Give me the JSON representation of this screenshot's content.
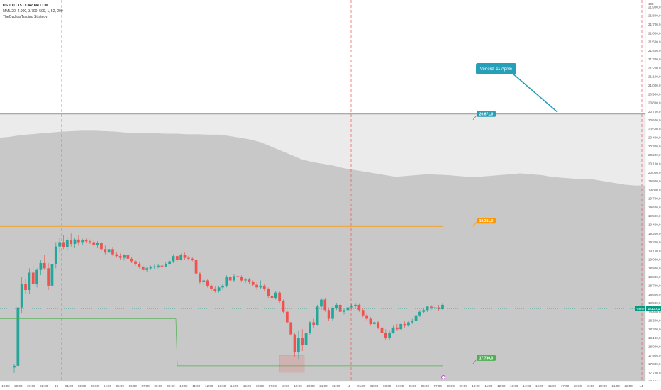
{
  "header": {
    "symbol_line": "US 100 · 15 · CAPITALCOM",
    "indicator_line": "MML 20, 4.900, 3.700, 500, 1, 52, 200",
    "strategy_line": "TheCyclicalTrading Strategy"
  },
  "colors": {
    "up": "#26a69a",
    "down": "#ef5350",
    "upper_band": "#ebebeb",
    "lower_band": "#c8c8c8",
    "resistance": "#ff9800",
    "support": "#4caf50",
    "target": "#26a0b8",
    "session_line": "#ef5350",
    "last_price": "#089981"
  },
  "chart_data": {
    "type": "candlestick",
    "title": "US 100 · 15 · CAPITALCOM",
    "y_axis": {
      "ticks": [
        "21.900,0",
        "21.800,0",
        "21.700,0",
        "21.600,0",
        "21.500,0",
        "21.400,0",
        "21.300,0",
        "21.200,0",
        "21.100,0",
        "21.000,0",
        "20.900,0",
        "20.800,0",
        "20.700,0",
        "20.600,0",
        "20.500,0",
        "20.400,0",
        "20.300,0",
        "20.200,0",
        "20.100,0",
        "20.000,0",
        "19.900,0",
        "19.800,0",
        "19.700,0",
        "19.600,0",
        "19.500,0",
        "19.400,0",
        "19.300,0",
        "19.200,0",
        "19.100,0",
        "19.000,0",
        "18.900,0",
        "18.800,0",
        "18.700,0",
        "18.600,0",
        "18.500,0",
        "18.400,0",
        "18.300,0",
        "18.200,0",
        "18.100,0",
        "18.000,0",
        "17.900,0",
        "17.800,0",
        "17.700,0",
        "17.600,0"
      ],
      "range": [
        17600,
        21980
      ],
      "top_label": "100"
    },
    "x_axis": {
      "ticks": [
        "19:00",
        "20:00",
        "21:00",
        "22:00",
        "10",
        "01:00",
        "02:00",
        "03:00",
        "04:00",
        "05:00",
        "06:00",
        "07:00",
        "08:00",
        "09:00",
        "10:00",
        "11:00",
        "12:00",
        "13:00",
        "14:00",
        "15:00",
        "16:00",
        "17:00",
        "18:00",
        "19:00",
        "20:00",
        "21:00",
        "22:00",
        "11",
        "01:00",
        "02:00",
        "03:00",
        "04:00",
        "05:00",
        "06:00",
        "07:00",
        "08:00",
        "09:00",
        "10:00",
        "11:00",
        "12:00",
        "13:00",
        "14:00",
        "15:00",
        "16:00",
        "17:00",
        "18:00",
        "19:00",
        "20:00",
        "21:00",
        "22:00",
        "14"
      ]
    },
    "candles": [
      {
        "o": 17760,
        "h": 17800,
        "l": 17700,
        "c": 17780
      },
      {
        "o": 17780,
        "h": 18500,
        "l": 17760,
        "c": 18450
      },
      {
        "o": 18450,
        "h": 18800,
        "l": 18380,
        "c": 18720
      },
      {
        "o": 18720,
        "h": 18780,
        "l": 18600,
        "c": 18650
      },
      {
        "o": 18650,
        "h": 18900,
        "l": 18600,
        "c": 18850
      },
      {
        "o": 18850,
        "h": 18950,
        "l": 18700,
        "c": 18720
      },
      {
        "o": 18720,
        "h": 18900,
        "l": 18680,
        "c": 18880
      },
      {
        "o": 18880,
        "h": 19000,
        "l": 18820,
        "c": 18960
      },
      {
        "o": 18960,
        "h": 19050,
        "l": 18880,
        "c": 18900
      },
      {
        "o": 18900,
        "h": 18960,
        "l": 18650,
        "c": 18700
      },
      {
        "o": 18700,
        "h": 19000,
        "l": 18650,
        "c": 18950
      },
      {
        "o": 18950,
        "h": 19200,
        "l": 18900,
        "c": 19150
      },
      {
        "o": 19150,
        "h": 19250,
        "l": 19080,
        "c": 19200
      },
      {
        "o": 19200,
        "h": 19280,
        "l": 19120,
        "c": 19140
      },
      {
        "o": 19140,
        "h": 19260,
        "l": 19100,
        "c": 19220
      },
      {
        "o": 19220,
        "h": 19300,
        "l": 19150,
        "c": 19180
      },
      {
        "o": 19180,
        "h": 19250,
        "l": 19130,
        "c": 19230
      },
      {
        "o": 19230,
        "h": 19280,
        "l": 19160,
        "c": 19200
      },
      {
        "o": 19200,
        "h": 19240,
        "l": 19170,
        "c": 19220
      },
      {
        "o": 19220,
        "h": 19240,
        "l": 19190,
        "c": 19210
      },
      {
        "o": 19210,
        "h": 19230,
        "l": 19180,
        "c": 19200
      },
      {
        "o": 19200,
        "h": 19220,
        "l": 19150,
        "c": 19170
      },
      {
        "o": 19170,
        "h": 19210,
        "l": 19130,
        "c": 19190
      },
      {
        "o": 19190,
        "h": 19200,
        "l": 19100,
        "c": 19120
      },
      {
        "o": 19120,
        "h": 19160,
        "l": 19060,
        "c": 19080
      },
      {
        "o": 19080,
        "h": 19150,
        "l": 19050,
        "c": 19120
      },
      {
        "o": 19120,
        "h": 19140,
        "l": 19040,
        "c": 19060
      },
      {
        "o": 19060,
        "h": 19090,
        "l": 19020,
        "c": 19040
      },
      {
        "o": 19040,
        "h": 19070,
        "l": 19000,
        "c": 19020
      },
      {
        "o": 19020,
        "h": 19060,
        "l": 18990,
        "c": 19050
      },
      {
        "o": 19050,
        "h": 19070,
        "l": 19000,
        "c": 19010
      },
      {
        "o": 19010,
        "h": 19030,
        "l": 18960,
        "c": 18980
      },
      {
        "o": 18980,
        "h": 19000,
        "l": 18930,
        "c": 18950
      },
      {
        "o": 18950,
        "h": 18970,
        "l": 18900,
        "c": 18920
      },
      {
        "o": 18920,
        "h": 18940,
        "l": 18860,
        "c": 18880
      },
      {
        "o": 18880,
        "h": 18920,
        "l": 18860,
        "c": 18900
      },
      {
        "o": 18900,
        "h": 18930,
        "l": 18880,
        "c": 18910
      },
      {
        "o": 18910,
        "h": 18940,
        "l": 18890,
        "c": 18920
      },
      {
        "o": 18920,
        "h": 18950,
        "l": 18900,
        "c": 18930
      },
      {
        "o": 18930,
        "h": 18960,
        "l": 18900,
        "c": 18920
      },
      {
        "o": 18920,
        "h": 18970,
        "l": 18910,
        "c": 18950
      },
      {
        "o": 18950,
        "h": 19000,
        "l": 18930,
        "c": 18980
      },
      {
        "o": 18980,
        "h": 19060,
        "l": 18960,
        "c": 19040
      },
      {
        "o": 19040,
        "h": 19060,
        "l": 18980,
        "c": 19000
      },
      {
        "o": 19000,
        "h": 19070,
        "l": 18990,
        "c": 19050
      },
      {
        "o": 19050,
        "h": 19080,
        "l": 19000,
        "c": 19020
      },
      {
        "o": 19020,
        "h": 19040,
        "l": 18990,
        "c": 19010
      },
      {
        "o": 19010,
        "h": 19030,
        "l": 18980,
        "c": 19000
      },
      {
        "o": 19000,
        "h": 19010,
        "l": 18820,
        "c": 18840
      },
      {
        "o": 18840,
        "h": 18860,
        "l": 18720,
        "c": 18740
      },
      {
        "o": 18740,
        "h": 18780,
        "l": 18700,
        "c": 18760
      },
      {
        "o": 18760,
        "h": 18770,
        "l": 18680,
        "c": 18700
      },
      {
        "o": 18700,
        "h": 18720,
        "l": 18640,
        "c": 18660
      },
      {
        "o": 18660,
        "h": 18690,
        "l": 18620,
        "c": 18640
      },
      {
        "o": 18640,
        "h": 18700,
        "l": 18620,
        "c": 18680
      },
      {
        "o": 18680,
        "h": 18720,
        "l": 18650,
        "c": 18700
      },
      {
        "o": 18700,
        "h": 18820,
        "l": 18680,
        "c": 18800
      },
      {
        "o": 18800,
        "h": 18830,
        "l": 18740,
        "c": 18760
      },
      {
        "o": 18760,
        "h": 18830,
        "l": 18740,
        "c": 18810
      },
      {
        "o": 18810,
        "h": 18840,
        "l": 18780,
        "c": 18800
      },
      {
        "o": 18800,
        "h": 18820,
        "l": 18740,
        "c": 18760
      },
      {
        "o": 18760,
        "h": 18790,
        "l": 18730,
        "c": 18770
      },
      {
        "o": 18770,
        "h": 18790,
        "l": 18720,
        "c": 18740
      },
      {
        "o": 18740,
        "h": 18760,
        "l": 18690,
        "c": 18710
      },
      {
        "o": 18710,
        "h": 18740,
        "l": 18650,
        "c": 18680
      },
      {
        "o": 18680,
        "h": 18760,
        "l": 18660,
        "c": 18700
      },
      {
        "o": 18700,
        "h": 18720,
        "l": 18640,
        "c": 18660
      },
      {
        "o": 18660,
        "h": 18680,
        "l": 18560,
        "c": 18580
      },
      {
        "o": 18580,
        "h": 18600,
        "l": 18540,
        "c": 18560
      },
      {
        "o": 18560,
        "h": 18640,
        "l": 18540,
        "c": 18620
      },
      {
        "o": 18620,
        "h": 18640,
        "l": 18500,
        "c": 18520
      },
      {
        "o": 18520,
        "h": 18540,
        "l": 18380,
        "c": 18400
      },
      {
        "o": 18400,
        "h": 18420,
        "l": 18260,
        "c": 18280
      },
      {
        "o": 18280,
        "h": 18300,
        "l": 18120,
        "c": 18140
      },
      {
        "o": 18140,
        "h": 18160,
        "l": 17880,
        "c": 17940
      },
      {
        "o": 17940,
        "h": 18180,
        "l": 17860,
        "c": 18100
      },
      {
        "o": 18100,
        "h": 18200,
        "l": 17950,
        "c": 18020
      },
      {
        "o": 18020,
        "h": 18180,
        "l": 18000,
        "c": 18160
      },
      {
        "o": 18160,
        "h": 18300,
        "l": 18140,
        "c": 18280
      },
      {
        "o": 18280,
        "h": 18320,
        "l": 18220,
        "c": 18250
      },
      {
        "o": 18250,
        "h": 18480,
        "l": 18240,
        "c": 18460
      },
      {
        "o": 18460,
        "h": 18560,
        "l": 18420,
        "c": 18540
      },
      {
        "o": 18540,
        "h": 18560,
        "l": 18400,
        "c": 18420
      },
      {
        "o": 18420,
        "h": 18450,
        "l": 18300,
        "c": 18320
      },
      {
        "o": 18320,
        "h": 18460,
        "l": 18300,
        "c": 18440
      },
      {
        "o": 18440,
        "h": 18500,
        "l": 18420,
        "c": 18480
      },
      {
        "o": 18480,
        "h": 18500,
        "l": 18380,
        "c": 18400
      },
      {
        "o": 18400,
        "h": 18440,
        "l": 18370,
        "c": 18420
      },
      {
        "o": 18420,
        "h": 18460,
        "l": 18410,
        "c": 18450
      },
      {
        "o": 18450,
        "h": 18490,
        "l": 18430,
        "c": 18470
      },
      {
        "o": 18470,
        "h": 18500,
        "l": 18440,
        "c": 18480
      },
      {
        "o": 18480,
        "h": 18490,
        "l": 18400,
        "c": 18420
      },
      {
        "o": 18420,
        "h": 18440,
        "l": 18340,
        "c": 18360
      },
      {
        "o": 18360,
        "h": 18380,
        "l": 18300,
        "c": 18320
      },
      {
        "o": 18320,
        "h": 18340,
        "l": 18240,
        "c": 18260
      },
      {
        "o": 18260,
        "h": 18300,
        "l": 18240,
        "c": 18280
      },
      {
        "o": 18280,
        "h": 18300,
        "l": 18200,
        "c": 18220
      },
      {
        "o": 18220,
        "h": 18240,
        "l": 18140,
        "c": 18160
      },
      {
        "o": 18160,
        "h": 18200,
        "l": 18080,
        "c": 18100
      },
      {
        "o": 18100,
        "h": 18180,
        "l": 18080,
        "c": 18160
      },
      {
        "o": 18160,
        "h": 18240,
        "l": 18150,
        "c": 18220
      },
      {
        "o": 18220,
        "h": 18260,
        "l": 18180,
        "c": 18200
      },
      {
        "o": 18200,
        "h": 18280,
        "l": 18190,
        "c": 18260
      },
      {
        "o": 18260,
        "h": 18290,
        "l": 18220,
        "c": 18240
      },
      {
        "o": 18240,
        "h": 18300,
        "l": 18230,
        "c": 18280
      },
      {
        "o": 18280,
        "h": 18320,
        "l": 18260,
        "c": 18300
      },
      {
        "o": 18300,
        "h": 18380,
        "l": 18280,
        "c": 18360
      },
      {
        "o": 18360,
        "h": 18420,
        "l": 18340,
        "c": 18400
      },
      {
        "o": 18400,
        "h": 18440,
        "l": 18380,
        "c": 18420
      },
      {
        "o": 18420,
        "h": 18470,
        "l": 18400,
        "c": 18460
      },
      {
        "o": 18460,
        "h": 18480,
        "l": 18420,
        "c": 18440
      },
      {
        "o": 18440,
        "h": 18470,
        "l": 18420,
        "c": 18450
      },
      {
        "o": 18450,
        "h": 18480,
        "l": 18410,
        "c": 18430
      },
      {
        "o": 18430,
        "h": 18500,
        "l": 18420,
        "c": 18480
      }
    ],
    "upper_band": [
      20400,
      20410,
      20430,
      20440,
      20450,
      20460,
      20470,
      20475,
      20480,
      20480,
      20475,
      20470,
      20460,
      20455,
      20450,
      20450,
      20445,
      20445,
      20440,
      20440,
      20435,
      20435,
      20420,
      20400,
      20380,
      20350,
      20300,
      20250,
      20200,
      20150,
      20120,
      20100,
      20080,
      20050,
      20030,
      20010,
      19990,
      19970,
      19950,
      19960,
      19970,
      19980,
      19975,
      19970,
      19960,
      19950,
      19950,
      19960,
      19970,
      19980,
      19990,
      19980,
      19970,
      19950,
      19940,
      19930,
      19920,
      19920,
      19900,
      19880,
      19860,
      19850,
      19850
    ],
    "lower_band_top": 19650,
    "levels": {
      "target": {
        "value": 20671,
        "label": "20.671,0"
      },
      "resistance": {
        "value": 19381,
        "label": "19.381,0"
      },
      "support": {
        "value": 17780,
        "label": "17.780,0"
      },
      "support_prior": {
        "value": 18320
      }
    },
    "last_price": {
      "value": 18437,
      "label": "18.437,1",
      "tag": "US100"
    },
    "annotation": {
      "text": "Venerdì 11 Aprile"
    },
    "session_markers": [
      "10",
      "11",
      "14"
    ]
  }
}
